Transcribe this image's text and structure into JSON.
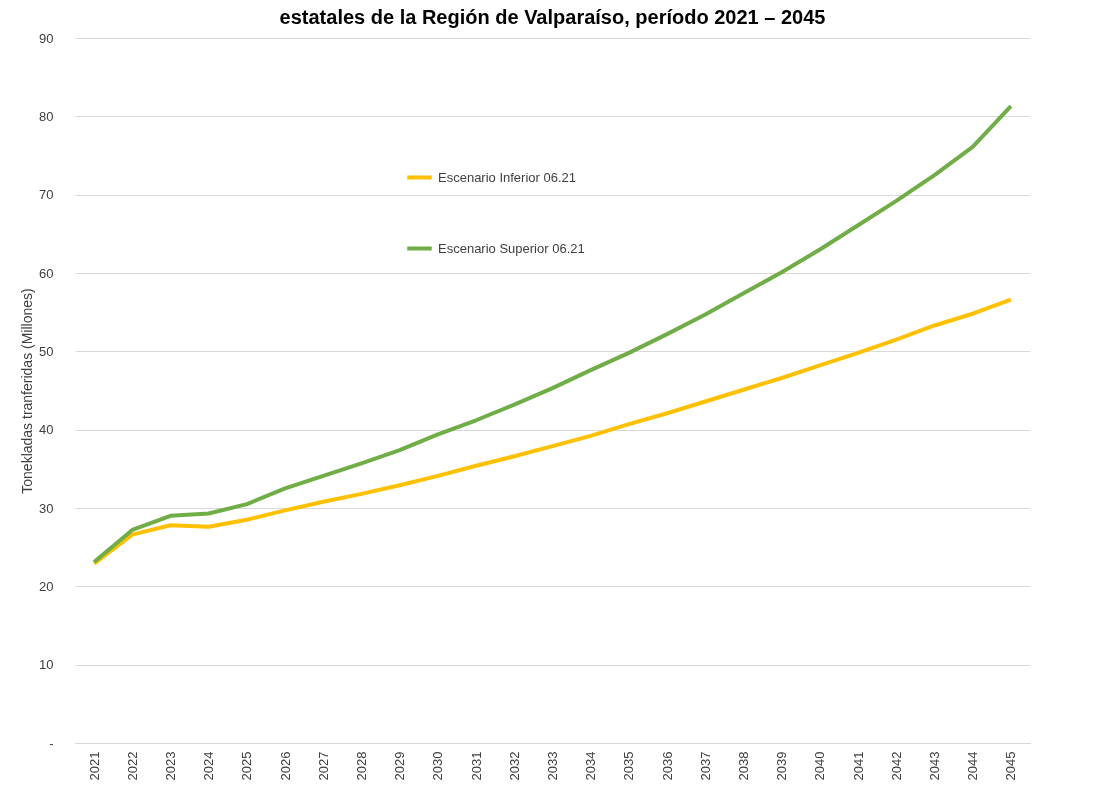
{
  "chart_data": {
    "type": "line",
    "title": "estatales de la Región de Valparaíso, período 2021 – 2045",
    "ylabel": "Tonekladas tranferidas (Millones)",
    "categories": [
      "2021",
      "2022",
      "2023",
      "2024",
      "2025",
      "2026",
      "2027",
      "2028",
      "2029",
      "2030",
      "2031",
      "2032",
      "2033",
      "2034",
      "2035",
      "2036",
      "2037",
      "2038",
      "2039",
      "2040",
      "2041",
      "2042",
      "2043",
      "2044",
      "2045"
    ],
    "series": [
      {
        "name": "Escenario Inferior 06.21",
        "color": "#ffc000",
        "values": [
          22.9,
          26.6,
          27.8,
          27.6,
          28.5,
          29.7,
          30.8,
          31.8,
          32.9,
          34.1,
          35.4,
          36.6,
          37.9,
          39.2,
          40.7,
          42.1,
          43.6,
          45.1,
          46.6,
          48.2,
          49.8,
          51.5,
          53.3,
          54.8,
          56.6
        ]
      },
      {
        "name": "Escenario Superior 06.21",
        "color": "#70ad47",
        "values": [
          23.1,
          27.2,
          29.0,
          29.3,
          30.5,
          32.5,
          34.1,
          35.7,
          37.4,
          39.4,
          41.2,
          43.2,
          45.3,
          47.6,
          49.8,
          52.2,
          54.7,
          57.4,
          60.1,
          63.0,
          66.1,
          69.2,
          72.5,
          76.1,
          81.3
        ]
      }
    ],
    "ylim": [
      0,
      90
    ],
    "yticks": [
      {
        "value": 0,
        "label": "-"
      },
      10,
      20,
      30,
      40,
      50,
      60,
      70,
      80,
      90
    ],
    "grid": "y",
    "legend": "top",
    "marker": "none",
    "line_style": "solid"
  }
}
